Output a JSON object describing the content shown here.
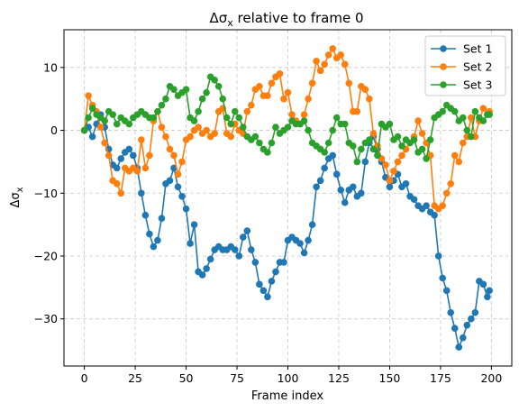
{
  "chart_data": {
    "type": "line",
    "title_parts": [
      "Δσ",
      "x",
      " relative to frame 0"
    ],
    "xlabel": "Frame index",
    "ylabel_parts": [
      "Δσ",
      "x"
    ],
    "xlim": [
      -10,
      210
    ],
    "ylim": [
      -37.5,
      16
    ],
    "xticks": [
      0,
      25,
      50,
      75,
      100,
      125,
      150,
      175,
      200
    ],
    "yticks": [
      -30,
      -20,
      -10,
      0,
      10
    ],
    "ytick_labels": [
      "−30",
      "−20",
      "−10",
      "0",
      "10"
    ],
    "grid": true,
    "legend_position": "top-right",
    "series": [
      {
        "name": "Set 1",
        "color": "#1f77b4",
        "x": [
          0,
          2,
          4,
          6,
          8,
          10,
          12,
          14,
          16,
          18,
          20,
          22,
          24,
          26,
          28,
          30,
          32,
          34,
          36,
          38,
          40,
          42,
          44,
          46,
          48,
          50,
          52,
          54,
          56,
          58,
          60,
          62,
          64,
          66,
          68,
          70,
          72,
          74,
          76,
          78,
          80,
          82,
          84,
          86,
          88,
          90,
          92,
          94,
          96,
          98,
          100,
          102,
          104,
          106,
          108,
          110,
          112,
          114,
          116,
          118,
          120,
          122,
          124,
          126,
          128,
          130,
          132,
          134,
          136,
          138,
          140,
          142,
          144,
          146,
          148,
          150,
          152,
          154,
          156,
          158,
          160,
          162,
          164,
          166,
          168,
          170,
          172,
          174,
          176,
          178,
          180,
          182,
          184,
          186,
          188,
          190,
          192,
          194,
          196,
          198,
          199
        ],
        "y": [
          0,
          0.5,
          -1,
          1,
          2.5,
          0.5,
          -3,
          -5.5,
          -6,
          -4.5,
          -3.5,
          -3,
          -4,
          -6,
          -10,
          -13.5,
          -16.5,
          -18.5,
          -17.5,
          -14,
          -8.5,
          -8,
          -6,
          -9,
          -10.5,
          -12.5,
          -18,
          -15,
          -22.5,
          -23,
          -22,
          -20.5,
          -19,
          -18.5,
          -19,
          -19,
          -18.5,
          -19,
          -20,
          -17,
          -16,
          -19,
          -21,
          -24.5,
          -25.5,
          -26.5,
          -24,
          -22.5,
          -21,
          -21,
          -17.5,
          -17,
          -17.5,
          -18,
          -19.5,
          -17.5,
          -15,
          -9,
          -8,
          -6,
          -4.5,
          -4,
          -7,
          -9.5,
          -11.5,
          -9.5,
          -9,
          -10.5,
          -10,
          -5,
          -2,
          -1,
          -3,
          -5,
          -7.5,
          -9,
          -8,
          -7,
          -9,
          -8.5,
          -10.5,
          -11,
          -12,
          -12.5,
          -12,
          -13,
          -13.5,
          -20,
          -23.5,
          -25.5,
          -29,
          -31.5,
          -34.5,
          -33,
          -31,
          -30,
          -29,
          -24,
          -24.5,
          -26.5,
          -25.5
        ]
      },
      {
        "name": "Set 2",
        "color": "#ff7f0e",
        "x": [
          0,
          2,
          4,
          6,
          8,
          10,
          12,
          14,
          16,
          18,
          20,
          22,
          24,
          26,
          28,
          30,
          32,
          34,
          36,
          38,
          40,
          42,
          44,
          46,
          48,
          50,
          52,
          54,
          56,
          58,
          60,
          62,
          64,
          66,
          68,
          70,
          72,
          74,
          76,
          78,
          80,
          82,
          84,
          86,
          88,
          90,
          92,
          94,
          96,
          98,
          100,
          102,
          104,
          106,
          108,
          110,
          112,
          114,
          116,
          118,
          120,
          122,
          124,
          126,
          128,
          130,
          132,
          134,
          136,
          138,
          140,
          142,
          144,
          146,
          148,
          150,
          152,
          154,
          156,
          158,
          160,
          162,
          164,
          166,
          168,
          170,
          172,
          174,
          176,
          178,
          180,
          182,
          184,
          186,
          188,
          190,
          192,
          194,
          196,
          198,
          199
        ],
        "y": [
          0,
          5.5,
          4,
          3,
          0.5,
          -2,
          -4,
          -8,
          -8.5,
          -10,
          -6,
          -6.5,
          -6,
          -6.5,
          -1.5,
          -6,
          -4,
          1.5,
          3,
          0.5,
          -1,
          -3,
          -4,
          -7,
          -5,
          -1.5,
          -1,
          0,
          0.5,
          -0.5,
          0,
          -1,
          -0.5,
          3,
          3.5,
          -0.5,
          -1,
          1,
          0,
          -0.5,
          3,
          4,
          6.5,
          7,
          5.5,
          5.5,
          7.5,
          8.5,
          9,
          5,
          6,
          2.5,
          1.5,
          1,
          2.5,
          5,
          7.5,
          11,
          9.5,
          10.5,
          12,
          13,
          11.5,
          12,
          10.5,
          7.5,
          3,
          3,
          7,
          6.5,
          5,
          -0.5,
          -2.5,
          -4.5,
          -5.5,
          -8,
          -6.5,
          -5,
          -4,
          -3,
          -2,
          -1,
          1.5,
          -0.5,
          -2,
          -4,
          -12,
          -12.5,
          -12,
          -10,
          -8.5,
          -4,
          -5,
          -2,
          -1,
          2,
          -1,
          1.5,
          3.5,
          2.5,
          3
        ]
      },
      {
        "name": "Set 3",
        "color": "#2ca02c",
        "x": [
          0,
          2,
          4,
          6,
          8,
          10,
          12,
          14,
          16,
          18,
          20,
          22,
          24,
          26,
          28,
          30,
          32,
          34,
          36,
          38,
          40,
          42,
          44,
          46,
          48,
          50,
          52,
          54,
          56,
          58,
          60,
          62,
          64,
          66,
          68,
          70,
          72,
          74,
          76,
          78,
          80,
          82,
          84,
          86,
          88,
          90,
          92,
          94,
          96,
          98,
          100,
          102,
          104,
          106,
          108,
          110,
          112,
          114,
          116,
          118,
          120,
          122,
          124,
          126,
          128,
          130,
          132,
          134,
          136,
          138,
          140,
          142,
          144,
          146,
          148,
          150,
          152,
          154,
          156,
          158,
          160,
          162,
          164,
          166,
          168,
          170,
          172,
          174,
          176,
          178,
          180,
          182,
          184,
          186,
          188,
          190,
          192,
          194,
          196,
          198,
          199
        ],
        "y": [
          0,
          2,
          3.5,
          2.5,
          2,
          1.5,
          3,
          2.5,
          1,
          2,
          1.5,
          1,
          2,
          2.5,
          3,
          2.5,
          2,
          2,
          3,
          4,
          5,
          7,
          6.5,
          5.5,
          6,
          6.5,
          2,
          1.5,
          3,
          5,
          6,
          8.5,
          8,
          7,
          5,
          2,
          1,
          3,
          2,
          0.5,
          -1,
          -1.5,
          -1,
          -2,
          -3,
          -3.5,
          -2,
          0.5,
          -0.5,
          0,
          0.5,
          1.5,
          1,
          1,
          1.5,
          0,
          -2,
          -2.5,
          -3,
          -3.5,
          -2,
          0,
          2,
          1,
          1,
          -2,
          -2.5,
          -5,
          -3,
          -2,
          -1.5,
          -3,
          -4,
          1,
          0.5,
          1,
          -1.5,
          -1,
          -2.5,
          -1.5,
          -2,
          -1.5,
          -3.5,
          -3,
          -4.5,
          -1.5,
          2,
          2.5,
          3,
          4,
          3.5,
          3,
          1.5,
          2,
          0,
          -1,
          3,
          2,
          1.5,
          2.5,
          2.5
        ]
      }
    ]
  }
}
